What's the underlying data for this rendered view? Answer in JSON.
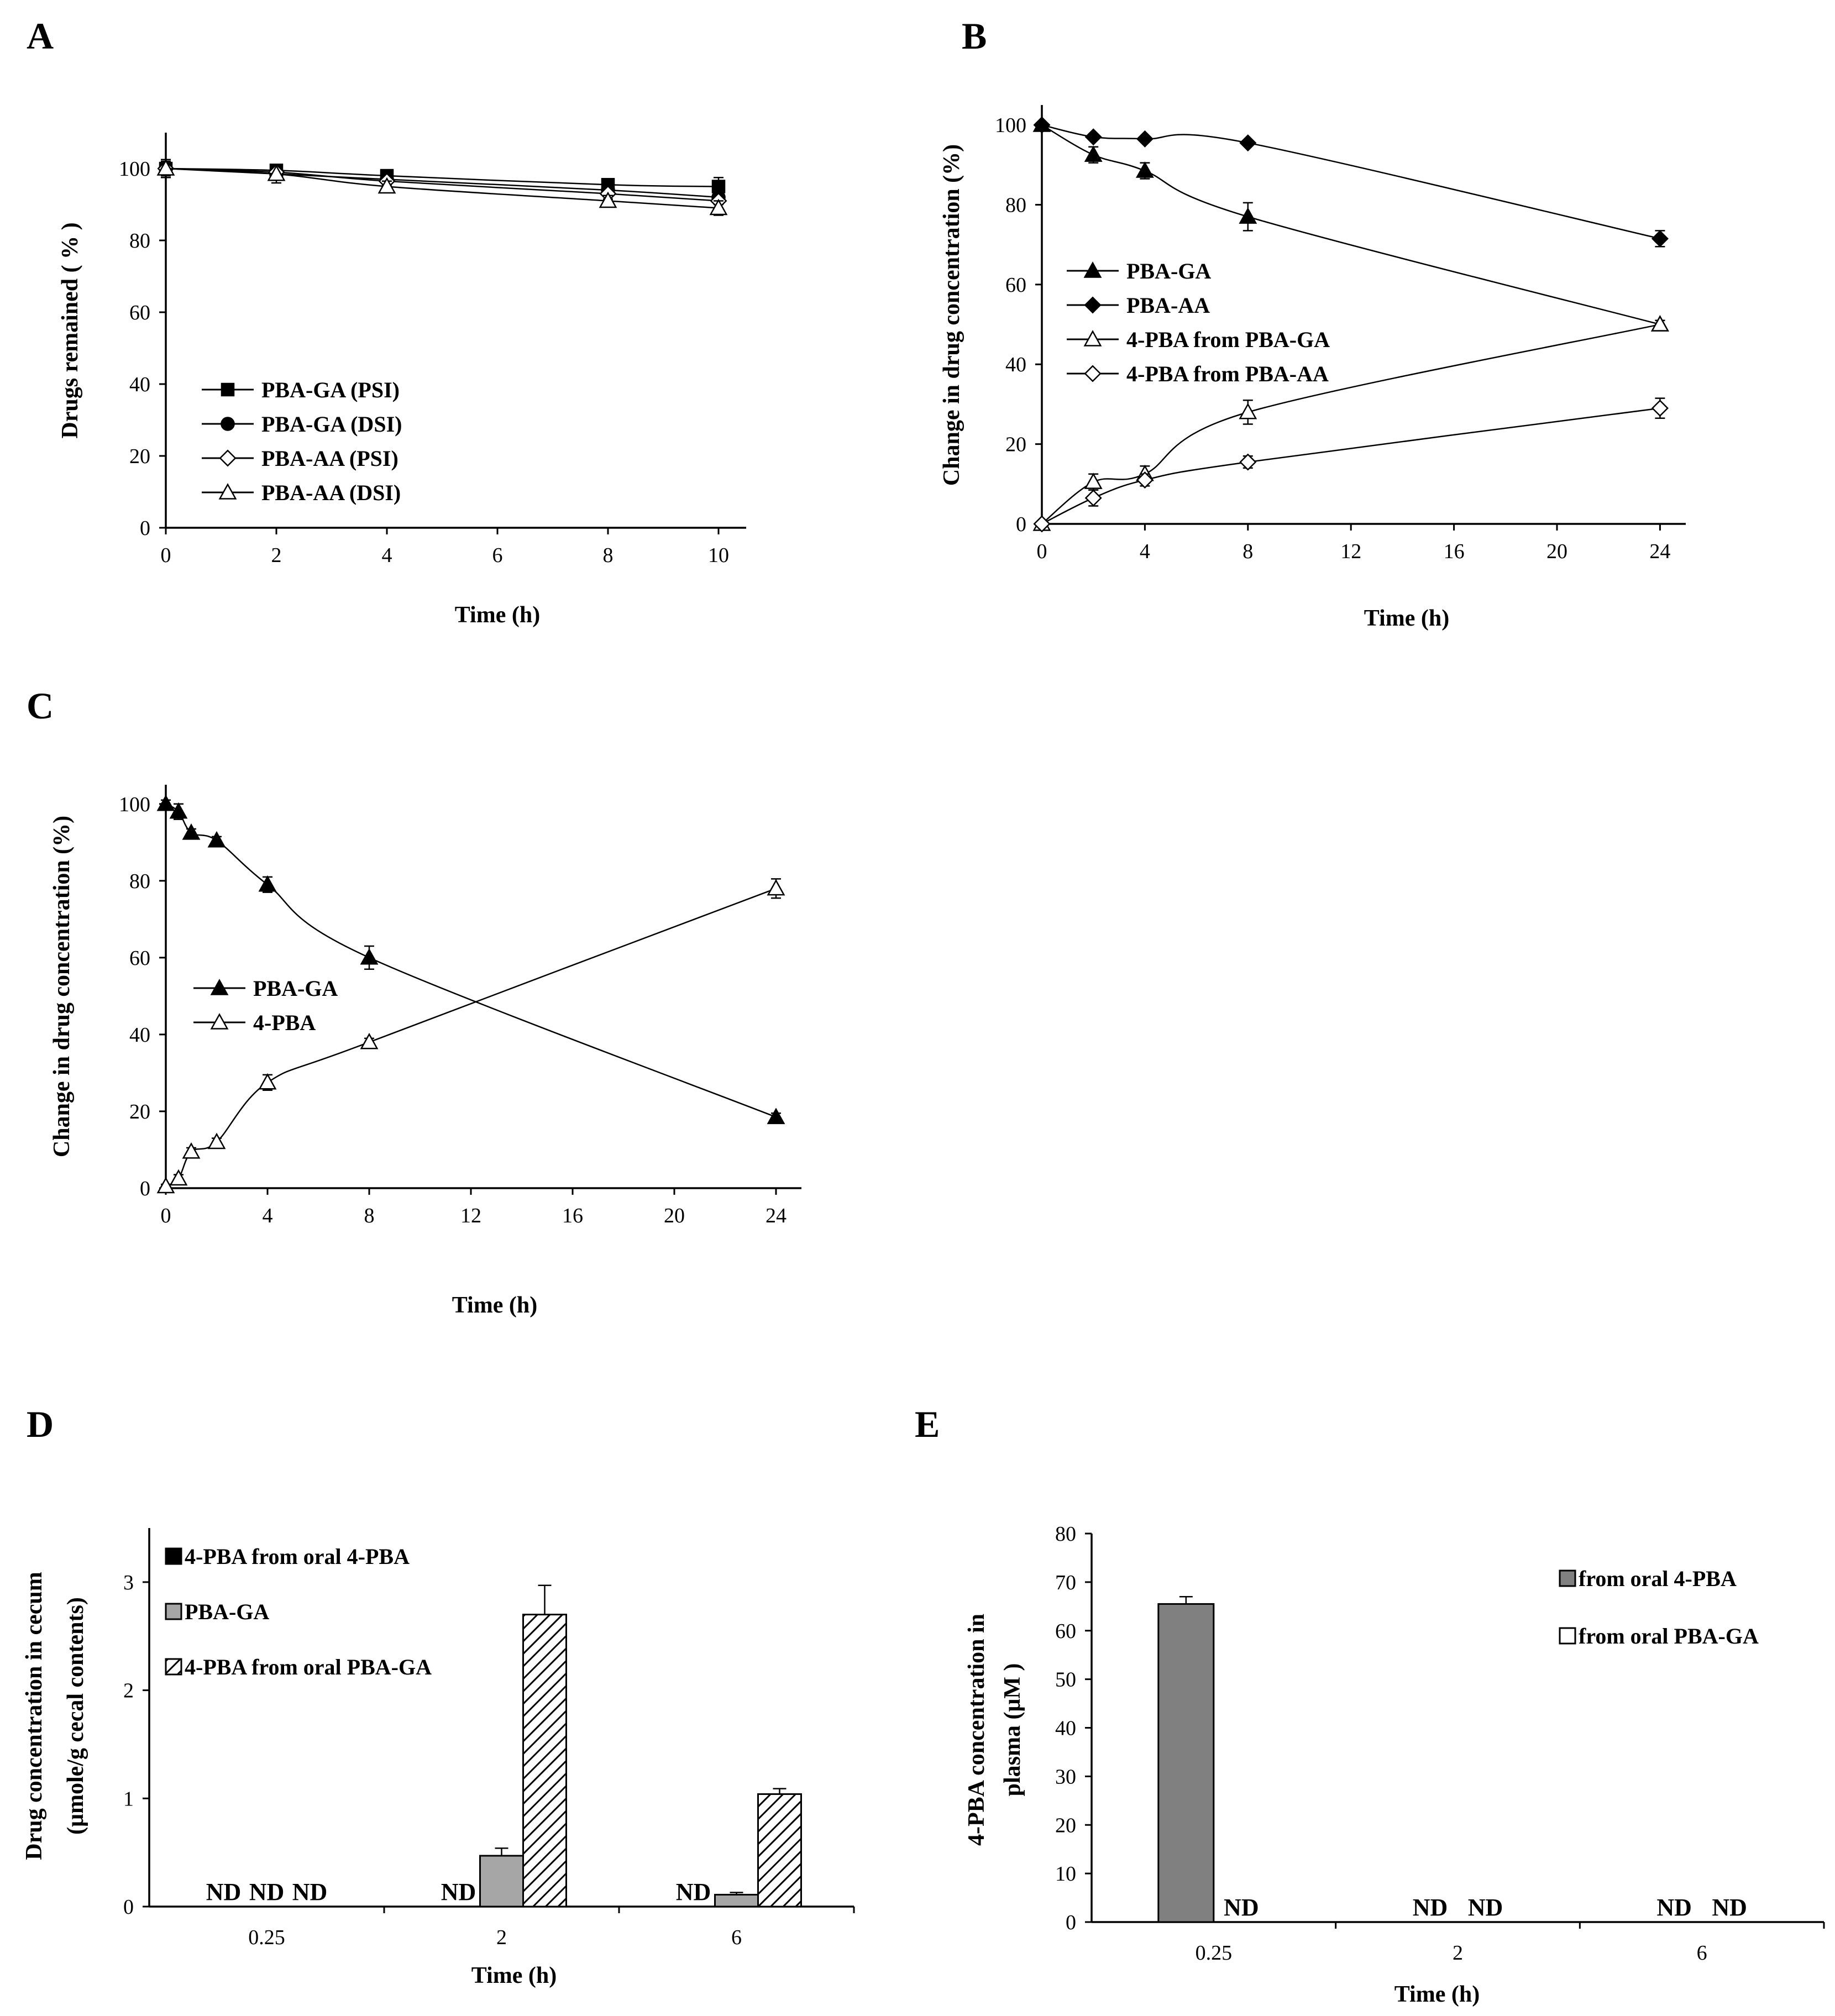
{
  "chart_data": [
    {
      "id": "A",
      "panel_label": "A",
      "type": "line",
      "xlabel": "Time (h)",
      "ylabel": "Drugs remained ( % )",
      "xlim": [
        0,
        10.5
      ],
      "ylim": [
        0,
        110
      ],
      "xticks": [
        0,
        2,
        4,
        6,
        8,
        10
      ],
      "yticks": [
        0,
        20,
        40,
        60,
        80,
        100
      ],
      "grid": false,
      "legend_position": "lower-left",
      "series": [
        {
          "name": "PBA-GA (PSI)",
          "marker": "square-filled",
          "x": [
            0,
            2,
            4,
            8,
            10
          ],
          "y": [
            100,
            99.5,
            98,
            95.5,
            95
          ],
          "err": [
            2,
            1.5,
            1.5,
            1.5,
            2.5
          ]
        },
        {
          "name": "PBA-GA (DSI)",
          "marker": "circle-filled",
          "x": [
            0,
            2,
            4,
            8,
            10
          ],
          "y": [
            100,
            98.5,
            97,
            94,
            92
          ],
          "err": [
            2,
            1.5,
            1.5,
            1.5,
            2
          ]
        },
        {
          "name": "PBA-AA (PSI)",
          "marker": "diamond-open",
          "x": [
            0,
            2,
            4,
            8,
            10
          ],
          "y": [
            100,
            99,
            96.5,
            93,
            91
          ],
          "err": [
            2,
            1.5,
            1.5,
            1.5,
            2
          ]
        },
        {
          "name": "PBA-AA (DSI)",
          "marker": "triangle-open",
          "x": [
            0,
            2,
            4,
            8,
            10
          ],
          "y": [
            100,
            98.5,
            95,
            91,
            89
          ],
          "err": [
            2.5,
            2.5,
            1.5,
            1.5,
            2
          ]
        }
      ]
    },
    {
      "id": "B",
      "panel_label": "B",
      "type": "line",
      "xlabel": "Time (h)",
      "ylabel": "Change in drug concentration  (%)",
      "xlim": [
        0,
        25
      ],
      "ylim": [
        0,
        105
      ],
      "xticks": [
        0,
        4,
        8,
        12,
        16,
        20,
        24
      ],
      "yticks": [
        0,
        20,
        40,
        60,
        80,
        100
      ],
      "grid": false,
      "legend_position": "middle-left",
      "series": [
        {
          "name": "PBA-GA",
          "marker": "triangle-filled",
          "x": [
            0,
            2,
            4,
            8,
            24
          ],
          "y": [
            100,
            92.5,
            88.5,
            77,
            50
          ],
          "err": [
            0.5,
            2,
            2,
            3.5,
            1
          ]
        },
        {
          "name": "PBA-AA",
          "marker": "diamond-filled",
          "x": [
            0,
            2,
            4,
            8,
            24
          ],
          "y": [
            100,
            97,
            96.5,
            95.5,
            71.5
          ],
          "err": [
            0.5,
            0.5,
            0.5,
            0.5,
            2
          ]
        },
        {
          "name": "4-PBA from PBA-GA",
          "marker": "triangle-open",
          "x": [
            0,
            2,
            4,
            8,
            24
          ],
          "y": [
            0,
            10.5,
            12.5,
            28,
            50
          ],
          "err": [
            0.5,
            2,
            2,
            3,
            1
          ]
        },
        {
          "name": "4-PBA from PBA-AA",
          "marker": "diamond-open",
          "x": [
            0,
            2,
            4,
            8,
            24
          ],
          "y": [
            0,
            6.5,
            11,
            15.5,
            29
          ],
          "err": [
            0.5,
            2,
            1.5,
            1.5,
            2.5
          ]
        }
      ]
    },
    {
      "id": "C",
      "panel_label": "C",
      "type": "line",
      "xlabel": "Time (h)",
      "ylabel": "Change in drug concentration  (%)",
      "xlim": [
        0,
        25
      ],
      "ylim": [
        0,
        105
      ],
      "xticks": [
        0,
        4,
        8,
        12,
        16,
        20,
        24
      ],
      "yticks": [
        0,
        20,
        40,
        60,
        80,
        100
      ],
      "grid": false,
      "legend_position": "middle-left",
      "series": [
        {
          "name": "PBA-GA",
          "marker": "triangle-filled",
          "x": [
            0,
            0.5,
            1,
            2,
            4,
            8,
            24
          ],
          "y": [
            100,
            98,
            92.5,
            90.5,
            79,
            60,
            18.5
          ],
          "err": [
            1,
            2,
            1,
            1,
            2,
            3,
            1
          ]
        },
        {
          "name": "4-PBA",
          "marker": "triangle-open",
          "x": [
            0,
            0.5,
            1,
            2,
            4,
            8,
            24
          ],
          "y": [
            0.5,
            2.5,
            9.5,
            12,
            27.5,
            38,
            78
          ],
          "err": [
            0.5,
            1,
            1,
            1,
            2,
            1,
            2.5
          ]
        }
      ]
    },
    {
      "id": "D",
      "panel_label": "D",
      "type": "bar",
      "xlabel": "Time (h)",
      "ylabel": "Drug concentration  in cecum",
      "ylabel2": "(μmole/g cecal contents)",
      "categories": [
        "0.25",
        "2",
        "6"
      ],
      "ylim": [
        0,
        3.5
      ],
      "yticks": [
        0,
        1,
        2,
        3
      ],
      "grid": false,
      "legend_position": "upper-left",
      "nd_label": "ND",
      "series": [
        {
          "name": "4-PBA from oral 4-PBA",
          "fill": "#000000",
          "pattern": "solid",
          "values": [
            null,
            null,
            null
          ],
          "err": [
            null,
            null,
            null
          ]
        },
        {
          "name": "PBA-GA",
          "fill": "#a6a6a6",
          "pattern": "solid",
          "values": [
            null,
            0.47,
            0.11
          ],
          "err": [
            null,
            0.07,
            0.02
          ]
        },
        {
          "name": "4-PBA from oral PBA-GA",
          "fill": "#ffffff",
          "pattern": "hatch",
          "values": [
            null,
            2.7,
            1.04
          ],
          "err": [
            null,
            0.27,
            0.05
          ]
        }
      ]
    },
    {
      "id": "E",
      "panel_label": "E",
      "type": "bar",
      "xlabel": "Time (h)",
      "ylabel": "4-PBA  concentration  in",
      "ylabel2": "plasma  (μM )",
      "categories": [
        "0.25",
        "2",
        "6"
      ],
      "ylim": [
        0,
        80
      ],
      "yticks": [
        0,
        10,
        20,
        30,
        40,
        50,
        60,
        70,
        80
      ],
      "grid": false,
      "legend_position": "upper-right",
      "nd_label": "ND",
      "series": [
        {
          "name": "from oral 4-PBA",
          "fill": "#808080",
          "pattern": "solid",
          "values": [
            65.5,
            null,
            null
          ],
          "err": [
            1.5,
            null,
            null
          ]
        },
        {
          "name": "from oral PBA-GA",
          "fill": "#ffffff",
          "pattern": "solid",
          "values": [
            null,
            null,
            null
          ],
          "err": [
            null,
            null,
            null
          ]
        }
      ]
    }
  ]
}
